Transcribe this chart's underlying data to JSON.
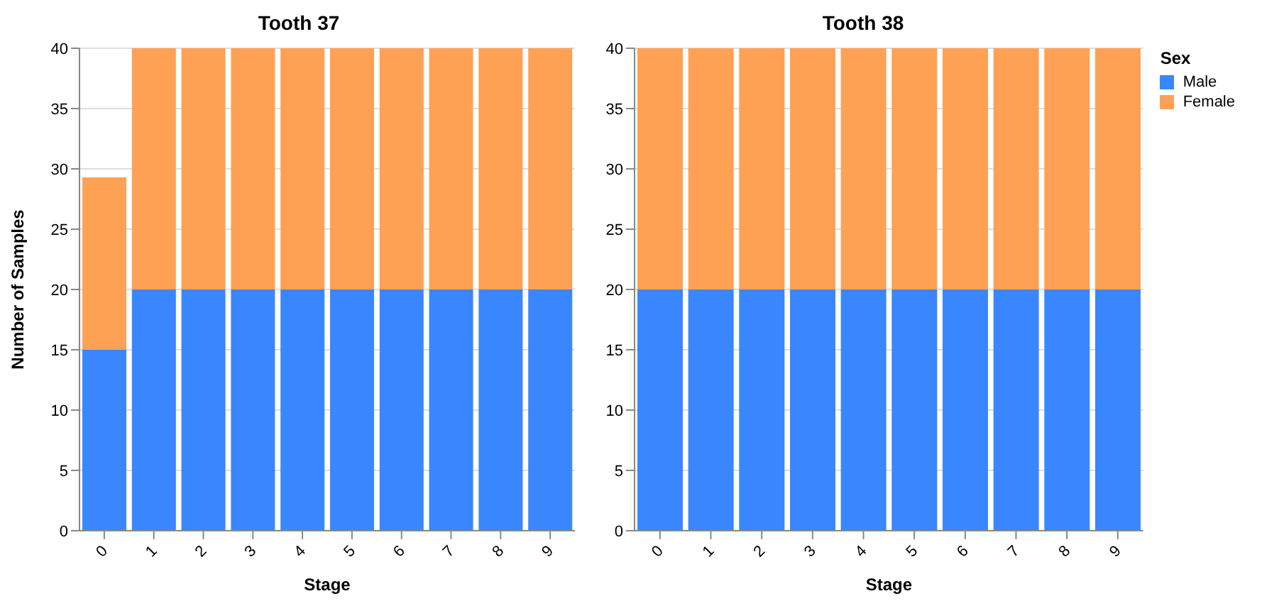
{
  "chart_data": [
    {
      "type": "bar",
      "title": "Tooth 37",
      "xlabel": "Stage",
      "ylabel": "Number of Samples",
      "categories": [
        "0",
        "1",
        "2",
        "3",
        "4",
        "5",
        "6",
        "7",
        "8",
        "9"
      ],
      "stacked": true,
      "ylim": [
        0,
        40
      ],
      "yticks": [
        0,
        5,
        10,
        15,
        20,
        25,
        30,
        35,
        40
      ],
      "grid": "y",
      "legend": false,
      "series": [
        {
          "color": "#3a86ff",
          "values": [
            15,
            20,
            20,
            20,
            20,
            20,
            20,
            20,
            20,
            20
          ]
        },
        {
          "color": "#ffa155",
          "values": [
            14.3,
            20,
            20,
            20,
            20,
            20,
            20,
            20,
            20,
            20
          ]
        }
      ]
    },
    {
      "type": "bar",
      "title": "Tooth 38",
      "xlabel": "Stage",
      "categories": [
        "0",
        "1",
        "2",
        "3",
        "4",
        "5",
        "6",
        "7",
        "8",
        "9"
      ],
      "stacked": true,
      "ylim": [
        0,
        40
      ],
      "yticks": [
        0,
        5,
        10,
        15,
        20,
        25,
        30,
        35,
        40
      ],
      "grid": "y",
      "legend": "right",
      "legend_title": "Sex",
      "series": [
        {
          "name": "Male",
          "color": "#3a86ff",
          "values": [
            20,
            20,
            20,
            20,
            20,
            20,
            20,
            20,
            20,
            20
          ]
        },
        {
          "name": "Female",
          "color": "#ffa155",
          "values": [
            20,
            20,
            20,
            20,
            20,
            20,
            20,
            20,
            20,
            20
          ]
        }
      ]
    }
  ]
}
